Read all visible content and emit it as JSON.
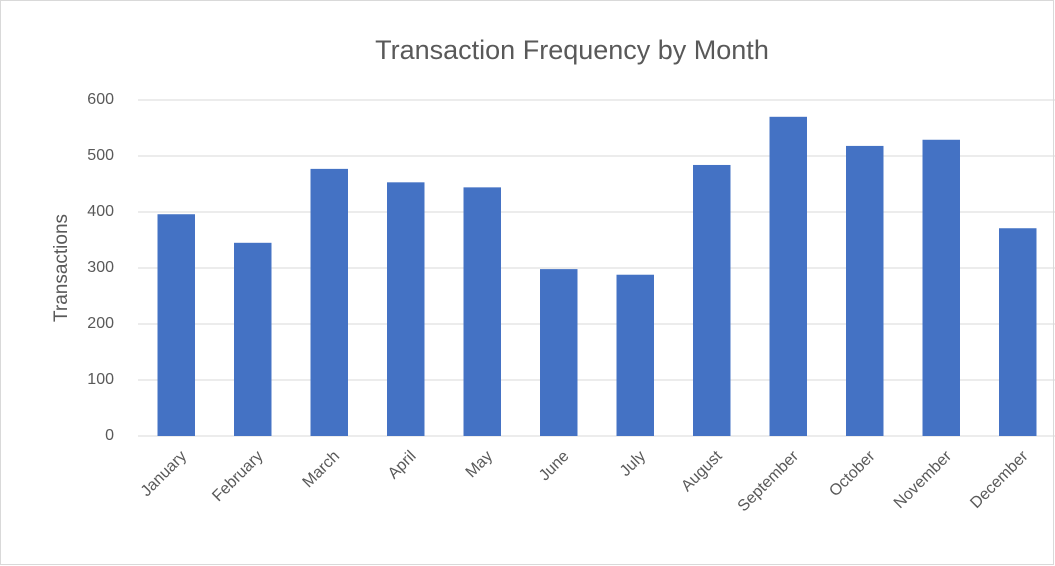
{
  "chart_data": {
    "type": "bar",
    "title": "Transaction Frequency by Month",
    "y_label": "Transactions",
    "categories": [
      "January",
      "February",
      "March",
      "April",
      "May",
      "June",
      "July",
      "August",
      "September",
      "October",
      "November",
      "December"
    ],
    "values": [
      396,
      345,
      477,
      453,
      444,
      298,
      288,
      484,
      570,
      518,
      529,
      371
    ],
    "color": "#4472c4",
    "ylim": [
      0,
      600
    ],
    "yticks": [
      0,
      100,
      200,
      300,
      400,
      500,
      600
    ],
    "grid": true
  }
}
